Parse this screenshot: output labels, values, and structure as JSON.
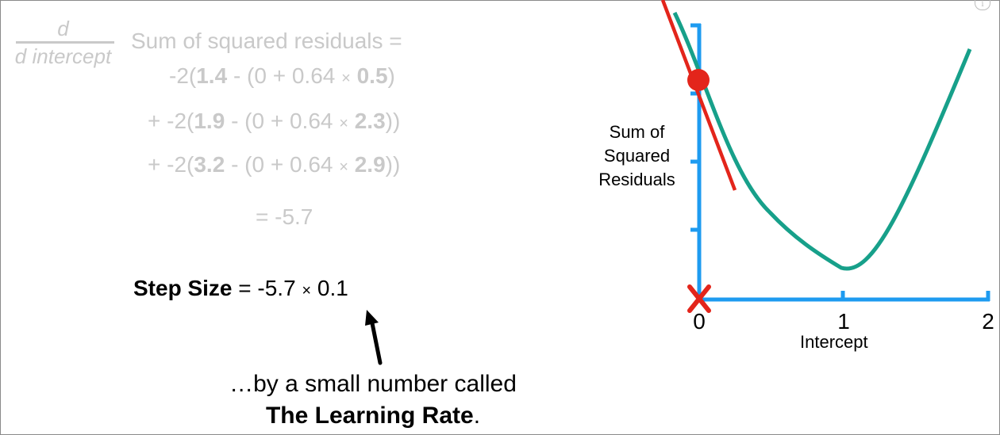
{
  "derivative": {
    "numerator": "d",
    "denominator": "d intercept",
    "label": "Sum of squared residuals ="
  },
  "terms": [
    {
      "prefix": "-2(",
      "obs": "1.4",
      "mid": " - (0 + 0.64 ",
      "times": "×",
      "pred": "0.5",
      "suffix": ")"
    },
    {
      "prefix": "+ -2(",
      "obs": "1.9",
      "mid": " - (0 + 0.64 ",
      "times": "×",
      "pred": "2.3",
      "suffix": "))"
    },
    {
      "prefix": "+ -2(",
      "obs": "3.2",
      "mid": " - (0 + 0.64 ",
      "times": "×",
      "pred": "2.9",
      "suffix": "))"
    }
  ],
  "result": "= -5.7",
  "step": {
    "label": "Step Size",
    "equals": " = -5.7 ",
    "times": "×",
    "rate": " 0.1"
  },
  "caption": {
    "line1": "…by a small number called",
    "line2_bold": "The Learning Rate",
    "line2_end": "."
  },
  "graph": {
    "y_label": "Sum of Squared Residuals",
    "x_label": "Intercept",
    "x_ticks": [
      "0",
      "1",
      "2"
    ],
    "x_range": [
      0,
      2
    ],
    "current_intercept": 0,
    "colors": {
      "axis": "#1e9bf0",
      "curve": "#17a08a",
      "tangent": "#e3251b",
      "point": "#e3251b",
      "marker": "#e3251b",
      "faded_text": "#c9c9c9"
    },
    "icons": [
      "x-mark-icon",
      "point-icon",
      "up-arrow-icon",
      "info-icon"
    ]
  }
}
